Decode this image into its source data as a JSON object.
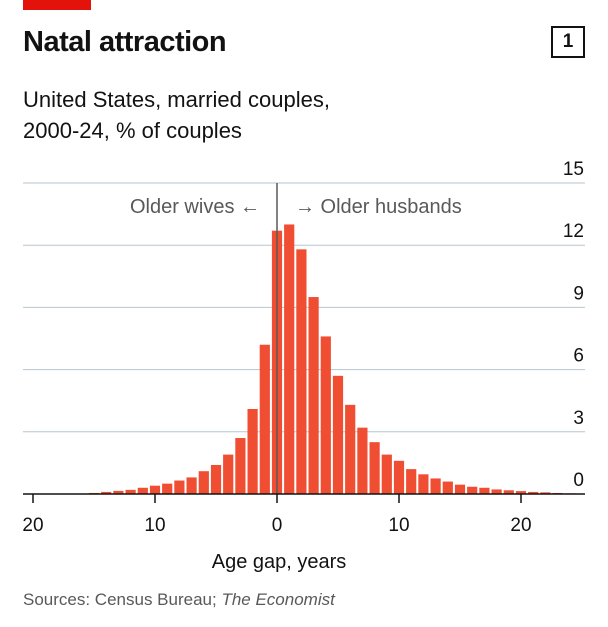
{
  "header": {
    "title": "Natal attraction",
    "chart_number": "1",
    "subtitle_line1": "United States, married couples,",
    "subtitle_line2": "2000-24, % of couples"
  },
  "annotations": {
    "older_wives": "Older wives ←",
    "older_husbands": "→ Older husbands"
  },
  "footer": {
    "sources_prefix": "Sources: Census Bureau; ",
    "sources_italic": "The Economist"
  },
  "colors": {
    "bar": "#f04e33",
    "grid": "#b7c6cf",
    "axis": "#121212",
    "accent_red": "#e3120b"
  },
  "chart_data": {
    "type": "bar",
    "title": "Natal attraction",
    "subtitle": "United States, married couples, 2000-24, % of couples",
    "xlabel": "Age gap, years",
    "ylabel": "",
    "x_tick_labels": [
      "20",
      "10",
      "0",
      "10",
      "20"
    ],
    "x_tick_values": [
      -20,
      -10,
      0,
      10,
      20
    ],
    "y_ticks": [
      0,
      3,
      6,
      9,
      12,
      15
    ],
    "ylim": [
      0,
      15
    ],
    "xlim": [
      -21,
      25
    ],
    "grid": true,
    "x": [
      -15,
      -14,
      -13,
      -12,
      -11,
      -10,
      -9,
      -8,
      -7,
      -6,
      -5,
      -4,
      -3,
      -2,
      -1,
      0,
      1,
      2,
      3,
      4,
      5,
      6,
      7,
      8,
      9,
      10,
      11,
      12,
      13,
      14,
      15,
      16,
      17,
      18,
      19,
      20,
      21,
      22,
      23,
      24
    ],
    "values": [
      0.05,
      0.1,
      0.15,
      0.2,
      0.3,
      0.4,
      0.5,
      0.65,
      0.8,
      1.1,
      1.4,
      1.9,
      2.7,
      4.1,
      7.2,
      12.7,
      13.0,
      11.8,
      9.5,
      7.6,
      5.7,
      4.3,
      3.2,
      2.5,
      1.9,
      1.6,
      1.2,
      0.95,
      0.75,
      0.6,
      0.45,
      0.35,
      0.3,
      0.22,
      0.18,
      0.14,
      0.1,
      0.08,
      0.05,
      0.03
    ]
  }
}
